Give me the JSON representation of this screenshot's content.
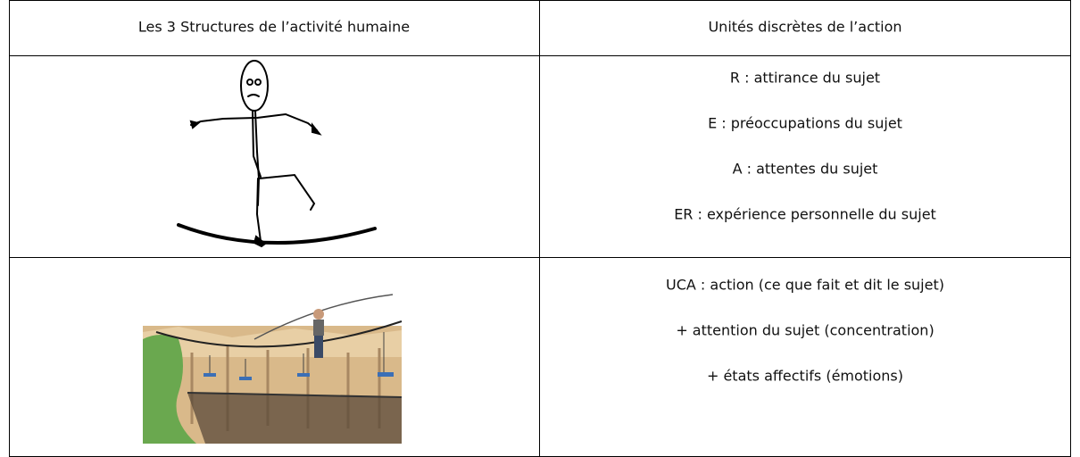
{
  "table": {
    "header": [
      "Les 3 Structures de l’activité humaine",
      "Unités discrètes de l’action"
    ],
    "rows": [
      {
        "lines": [
          "R :  attirance du sujet",
          "E :  préoccupations du sujet",
          "A :  attentes du sujet",
          "ER :  expérience personnelle du sujet"
        ]
      },
      {
        "lines": [
          "UCA :  action (ce que fait et dit le sujet)",
          "+ attention du sujet (concentration)",
          "+ états affectifs (émotions)"
        ]
      }
    ]
  }
}
